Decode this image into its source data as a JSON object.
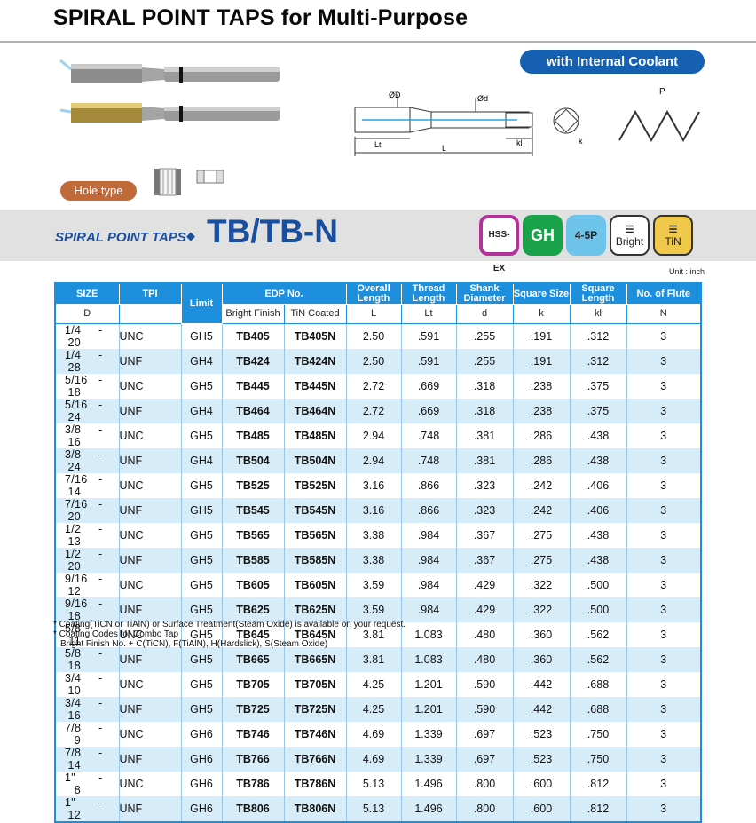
{
  "title": "SPIRAL POINT TAPS for Multi-Purpose",
  "coolant_label": "with Internal Coolant",
  "hole_type_label": "Hole type",
  "band": {
    "subtitle": "SPIRAL POINT TAPS",
    "bullet": "◆",
    "product": "TB/TB-N"
  },
  "badges": {
    "hss": "HSS-EX",
    "gh": "GH",
    "flutes": "4-5P",
    "bright": "Bright",
    "tin": "TiN"
  },
  "diagram": {
    "D": "ØD",
    "d": "Ød",
    "Lt": "Lt",
    "L": "L",
    "kl": "kl",
    "k": "k",
    "P": "P"
  },
  "unit": "Unit : inch",
  "table": {
    "headers": {
      "size": "SIZE",
      "tpi": "TPI",
      "limit": "Limit",
      "edp": "EDP No.",
      "bright": "Bright Finish",
      "tin": "TiN Coated",
      "overall": "Overall Length",
      "thread": "Thread Length",
      "shank": "Shank Diameter",
      "square_size": "Square Size",
      "square_length": "Square Length",
      "flute": "No. of Flute"
    },
    "subheaders": {
      "size": "D",
      "L": "L",
      "Lt": "Lt",
      "d": "d",
      "k": "k",
      "kl": "kl",
      "N": "N"
    },
    "rows": [
      [
        "1/4",
        "20",
        "UNC",
        "GH5",
        "TB405",
        "TB405N",
        "2.50",
        ".591",
        ".255",
        ".191",
        ".312",
        "3"
      ],
      [
        "1/4",
        "28",
        "UNF",
        "GH4",
        "TB424",
        "TB424N",
        "2.50",
        ".591",
        ".255",
        ".191",
        ".312",
        "3"
      ],
      [
        "5/16",
        "18",
        "UNC",
        "GH5",
        "TB445",
        "TB445N",
        "2.72",
        ".669",
        ".318",
        ".238",
        ".375",
        "3"
      ],
      [
        "5/16",
        "24",
        "UNF",
        "GH4",
        "TB464",
        "TB464N",
        "2.72",
        ".669",
        ".318",
        ".238",
        ".375",
        "3"
      ],
      [
        "3/8",
        "16",
        "UNC",
        "GH5",
        "TB485",
        "TB485N",
        "2.94",
        ".748",
        ".381",
        ".286",
        ".438",
        "3"
      ],
      [
        "3/8",
        "24",
        "UNF",
        "GH4",
        "TB504",
        "TB504N",
        "2.94",
        ".748",
        ".381",
        ".286",
        ".438",
        "3"
      ],
      [
        "7/16",
        "14",
        "UNC",
        "GH5",
        "TB525",
        "TB525N",
        "3.16",
        ".866",
        ".323",
        ".242",
        ".406",
        "3"
      ],
      [
        "7/16",
        "20",
        "UNF",
        "GH5",
        "TB545",
        "TB545N",
        "3.16",
        ".866",
        ".323",
        ".242",
        ".406",
        "3"
      ],
      [
        "1/2",
        "13",
        "UNC",
        "GH5",
        "TB565",
        "TB565N",
        "3.38",
        ".984",
        ".367",
        ".275",
        ".438",
        "3"
      ],
      [
        "1/2",
        "20",
        "UNF",
        "GH5",
        "TB585",
        "TB585N",
        "3.38",
        ".984",
        ".367",
        ".275",
        ".438",
        "3"
      ],
      [
        "9/16",
        "12",
        "UNC",
        "GH5",
        "TB605",
        "TB605N",
        "3.59",
        ".984",
        ".429",
        ".322",
        ".500",
        "3"
      ],
      [
        "9/16",
        "18",
        "UNF",
        "GH5",
        "TB625",
        "TB625N",
        "3.59",
        ".984",
        ".429",
        ".322",
        ".500",
        "3"
      ],
      [
        "5/8",
        "11",
        "UNC",
        "GH5",
        "TB645",
        "TB645N",
        "3.81",
        "1.083",
        ".480",
        ".360",
        ".562",
        "3"
      ],
      [
        "5/8",
        "18",
        "UNF",
        "GH5",
        "TB665",
        "TB665N",
        "3.81",
        "1.083",
        ".480",
        ".360",
        ".562",
        "3"
      ],
      [
        "3/4",
        "10",
        "UNC",
        "GH5",
        "TB705",
        "TB705N",
        "4.25",
        "1.201",
        ".590",
        ".442",
        ".688",
        "3"
      ],
      [
        "3/4",
        "16",
        "UNF",
        "GH5",
        "TB725",
        "TB725N",
        "4.25",
        "1.201",
        ".590",
        ".442",
        ".688",
        "3"
      ],
      [
        "7/8",
        "9",
        "UNC",
        "GH6",
        "TB746",
        "TB746N",
        "4.69",
        "1.339",
        ".697",
        ".523",
        ".750",
        "3"
      ],
      [
        "7/8",
        "14",
        "UNF",
        "GH6",
        "TB766",
        "TB766N",
        "4.69",
        "1.339",
        ".697",
        ".523",
        ".750",
        "3"
      ],
      [
        "1\"",
        "8",
        "UNC",
        "GH6",
        "TB786",
        "TB786N",
        "5.13",
        "1.496",
        ".800",
        ".600",
        ".812",
        "3"
      ],
      [
        "1\"",
        "12",
        "UNF",
        "GH6",
        "TB806",
        "TB806N",
        "5.13",
        "1.496",
        ".800",
        ".600",
        ".812",
        "3"
      ]
    ]
  },
  "notes": [
    "* Coating(TiCN or TiAlN) or Surface Treatment(Steam Oxide) is available on your request.",
    "* Coating Codes for Combo Tap",
    "  Bright Finish No. + C(TiCN), F(TiAlN), H(Hardslick), S(Steam Oxide)"
  ]
}
